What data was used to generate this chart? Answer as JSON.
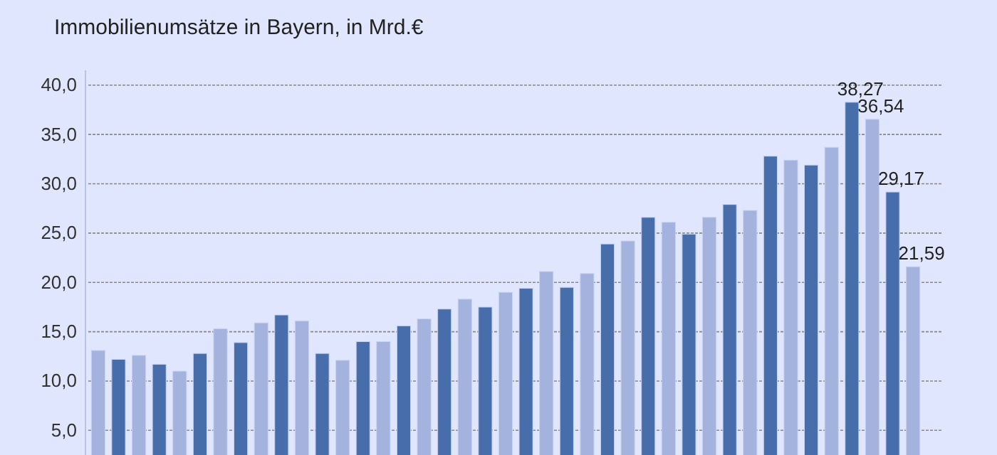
{
  "chart_data": {
    "type": "bar",
    "title": "Immobilienumsätze  in Bayern, in Mrd.€",
    "categories": [
      null,
      null,
      null,
      null,
      null,
      null,
      null,
      null,
      null,
      null,
      null,
      null,
      null,
      null,
      null,
      null,
      null,
      null,
      null,
      null,
      null,
      null,
      null,
      null,
      null,
      null,
      null,
      null,
      null,
      null,
      null,
      null,
      null,
      null,
      null,
      null,
      null,
      null,
      null,
      null,
      null
    ],
    "values": [
      13.1,
      12.2,
      12.6,
      11.7,
      11.0,
      12.8,
      15.3,
      13.9,
      15.9,
      16.7,
      16.1,
      12.8,
      12.1,
      14.0,
      14.0,
      15.6,
      16.3,
      17.3,
      18.3,
      17.5,
      19.0,
      19.4,
      21.1,
      19.5,
      20.9,
      23.9,
      24.2,
      26.6,
      26.1,
      24.9,
      26.6,
      27.9,
      27.3,
      32.8,
      32.4,
      31.9,
      33.7,
      38.27,
      36.54,
      29.17,
      21.59
    ],
    "colors": [
      "#a4b3dd",
      "#476eab",
      "#a4b3dd",
      "#476eab",
      "#a4b3dd",
      "#476eab",
      "#a4b3dd",
      "#476eab",
      "#a4b3dd",
      "#476eab",
      "#a4b3dd",
      "#476eab",
      "#a4b3dd",
      "#476eab",
      "#a4b3dd",
      "#476eab",
      "#a4b3dd",
      "#476eab",
      "#a4b3dd",
      "#476eab",
      "#a4b3dd",
      "#476eab",
      "#a4b3dd",
      "#476eab",
      "#a4b3dd",
      "#476eab",
      "#a4b3dd",
      "#476eab",
      "#a4b3dd",
      "#476eab",
      "#a4b3dd",
      "#476eab",
      "#a4b3dd",
      "#476eab",
      "#a4b3dd",
      "#476eab",
      "#a4b3dd",
      "#476eab",
      "#a4b3dd",
      "#476eab",
      "#a4b3dd"
    ],
    "value_labels": [
      null,
      null,
      null,
      null,
      null,
      null,
      null,
      null,
      null,
      null,
      null,
      null,
      null,
      null,
      null,
      null,
      null,
      null,
      null,
      null,
      null,
      null,
      null,
      null,
      null,
      null,
      null,
      null,
      null,
      null,
      null,
      null,
      null,
      null,
      null,
      null,
      null,
      "38,27",
      "36,54",
      "29,17",
      "21,59"
    ],
    "ylim": [
      2.5,
      41.5
    ],
    "yticks": [
      {
        "value": 5,
        "label": "5,0"
      },
      {
        "value": 10,
        "label": "10,0"
      },
      {
        "value": 15,
        "label": "15,0"
      },
      {
        "value": 20,
        "label": "20,0"
      },
      {
        "value": 25,
        "label": "25,0"
      },
      {
        "value": 30,
        "label": "30,0"
      },
      {
        "value": 35,
        "label": "35,0"
      },
      {
        "value": 40,
        "label": "40,0"
      }
    ],
    "grid": "y"
  }
}
